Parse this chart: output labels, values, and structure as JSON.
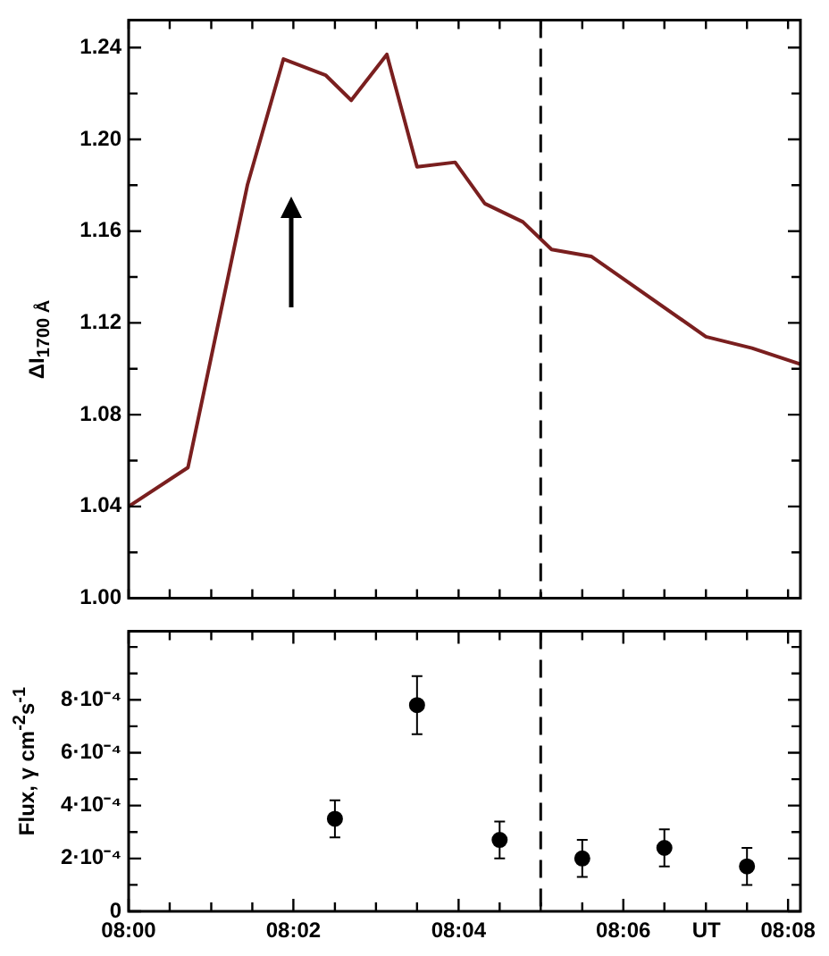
{
  "chart_data": [
    {
      "type": "line",
      "ylabel": "ΔI$_{1700 Å}$",
      "tick_labels": "y",
      "grid": false,
      "xlim": [
        8,
        8.1358
      ],
      "ylim": [
        1.0,
        1.252
      ],
      "xticks": [
        {
          "value": 8,
          "label": null
        },
        {
          "value": 8.0083,
          "label": null
        },
        {
          "value": 8.0167,
          "label": null
        },
        {
          "value": 8.025,
          "label": null
        },
        {
          "value": 8.0333,
          "label": null
        },
        {
          "value": 8.0417,
          "label": null
        },
        {
          "value": 8.05,
          "label": null
        },
        {
          "value": 8.0583,
          "label": null
        },
        {
          "value": 8.0667,
          "label": null
        },
        {
          "value": 8.075,
          "label": null
        },
        {
          "value": 8.0833,
          "label": null
        },
        {
          "value": 8.0917,
          "label": null
        },
        {
          "value": 8.1,
          "label": null
        },
        {
          "value": 8.1083,
          "label": null
        },
        {
          "value": 8.1167,
          "label": null
        },
        {
          "value": 8.125,
          "label": null
        },
        {
          "value": 8.1333,
          "label": null
        }
      ],
      "yticks": [
        {
          "value": 1.0,
          "label": "1.00"
        },
        {
          "value": 1.02,
          "label": null
        },
        {
          "value": 1.04,
          "label": "1.04"
        },
        {
          "value": 1.06,
          "label": null
        },
        {
          "value": 1.08,
          "label": "1.08"
        },
        {
          "value": 1.1,
          "label": null
        },
        {
          "value": 1.12,
          "label": "1.12"
        },
        {
          "value": 1.14,
          "label": null
        },
        {
          "value": 1.16,
          "label": "1.16"
        },
        {
          "value": 1.18,
          "label": null
        },
        {
          "value": 1.2,
          "label": "1.20"
        },
        {
          "value": 1.22,
          "label": null
        },
        {
          "value": 1.24,
          "label": "1.24"
        }
      ],
      "x": [
        8,
        8.012,
        8.024,
        8.0313,
        8.0398,
        8.045,
        8.0522,
        8.0583,
        8.066,
        8.072,
        8.0797,
        8.0855,
        8.0935,
        8.1167,
        8.126,
        8.1358
      ],
      "series": [
        {
          "color": "#7a1f1f",
          "values": [
            1.04,
            1.057,
            1.18,
            1.235,
            1.228,
            1.217,
            1.237,
            1.188,
            1.19,
            1.172,
            1.164,
            1.152,
            1.149,
            1.114,
            1.109,
            1.102
          ]
        }
      ],
      "ref_lines": [
        {
          "axis": "x",
          "value": 8.0833,
          "color": "#000000",
          "line_style": "dashed"
        }
      ]
    },
    {
      "type": "scatter",
      "ylabel": "Flux, γ cm$^{-2}$s$^{-1}$",
      "xlabel": "UT",
      "grid": false,
      "marker": "circle",
      "xlim": [
        8,
        8.1358
      ],
      "ylim": [
        0,
        0.00106
      ],
      "xticks": [
        {
          "value": 8,
          "label": "08:00"
        },
        {
          "value": 8.0083,
          "label": null
        },
        {
          "value": 8.0167,
          "label": null
        },
        {
          "value": 8.025,
          "label": null
        },
        {
          "value": 8.0333,
          "label": "08:02"
        },
        {
          "value": 8.0417,
          "label": null
        },
        {
          "value": 8.05,
          "label": null
        },
        {
          "value": 8.0583,
          "label": null
        },
        {
          "value": 8.0667,
          "label": "08:04"
        },
        {
          "value": 8.075,
          "label": null
        },
        {
          "value": 8.0833,
          "label": null
        },
        {
          "value": 8.0917,
          "label": null
        },
        {
          "value": 8.1,
          "label": "08:06"
        },
        {
          "value": 8.1083,
          "label": null
        },
        {
          "value": 8.1167,
          "label": null
        },
        {
          "value": 8.125,
          "label": null
        },
        {
          "value": 8.1333,
          "label": "08:08"
        }
      ],
      "yticks": [
        {
          "value": 0,
          "label": "0"
        },
        {
          "value": 0.0001,
          "label": null
        },
        {
          "value": 0.0002,
          "label": "2·10⁻⁴"
        },
        {
          "value": 0.0003,
          "label": null
        },
        {
          "value": 0.0004,
          "label": "4·10⁻⁴"
        },
        {
          "value": 0.0005,
          "label": null
        },
        {
          "value": 0.0006,
          "label": "6·10⁻⁴"
        },
        {
          "value": 0.0007,
          "label": null
        },
        {
          "value": 0.0008,
          "label": "8·10⁻⁴"
        },
        {
          "value": 0.0009,
          "label": null
        },
        {
          "value": 0.001,
          "label": null
        }
      ],
      "x": [
        8.0417,
        8.0583,
        8.075,
        8.0917,
        8.1083,
        8.125
      ],
      "series": [
        {
          "color": "#000000",
          "values": [
            0.00035,
            0.00078,
            0.00027,
            0.0002,
            0.00024,
            0.00017
          ],
          "errors": [
            7e-05,
            0.00011,
            7e-05,
            7e-05,
            7e-05,
            7e-05
          ]
        }
      ],
      "ref_lines": [
        {
          "axis": "x",
          "value": 8.0833,
          "color": "#000000",
          "line_style": "dashed"
        }
      ]
    }
  ]
}
